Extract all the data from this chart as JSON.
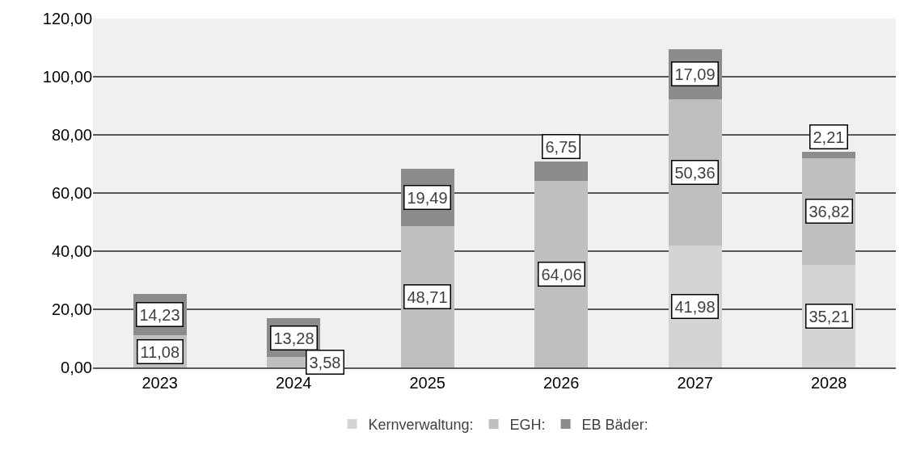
{
  "chart_data": {
    "type": "bar",
    "stacked": true,
    "categories": [
      "2023",
      "2024",
      "2025",
      "2026",
      "2027",
      "2028"
    ],
    "series": [
      {
        "name": "Kernverwaltung:",
        "color": "#d4d4d4",
        "values": [
          null,
          null,
          null,
          null,
          41.98,
          35.21
        ],
        "value_labels": [
          null,
          null,
          null,
          null,
          "41,98",
          "35,21"
        ]
      },
      {
        "name": "EGH:",
        "color": "#bfbfbf",
        "values": [
          11.08,
          3.58,
          48.71,
          64.06,
          50.36,
          36.82
        ],
        "value_labels": [
          "11,08",
          "3,58",
          "48,71",
          "64,06",
          "50,36",
          "36,82"
        ]
      },
      {
        "name": "EB Bäder:",
        "color": "#8c8c8c",
        "values": [
          14.23,
          13.28,
          19.49,
          6.75,
          17.09,
          2.21
        ],
        "value_labels": [
          "14,23",
          "13,28",
          "19,49",
          "6,75",
          "17,09",
          "2,21"
        ]
      }
    ],
    "ylim": [
      0,
      120
    ],
    "yticks": [
      {
        "value": 0,
        "label": "0,00"
      },
      {
        "value": 20,
        "label": "20,00"
      },
      {
        "value": 40,
        "label": "40,00"
      },
      {
        "value": 60,
        "label": "60,00"
      },
      {
        "value": 80,
        "label": "80,00"
      },
      {
        "value": 100,
        "label": "100,00"
      },
      {
        "value": 120,
        "label": "120,00"
      }
    ],
    "grid": "y",
    "legend": "bottom"
  }
}
